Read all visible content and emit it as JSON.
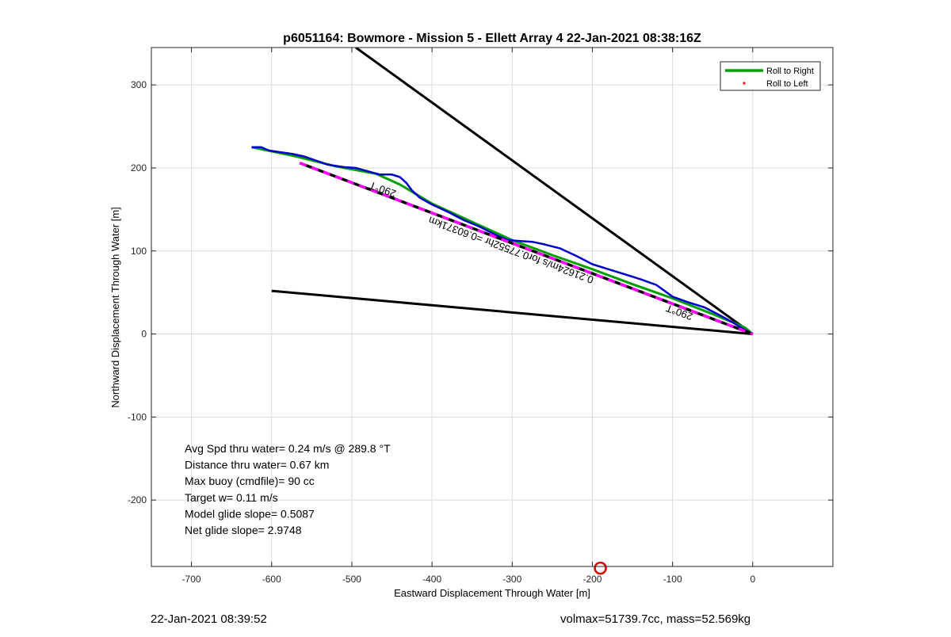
{
  "footer": {
    "timestamp": "22-Jan-2021 08:39:52",
    "vehicle_info": "volmax=51739.7cc, mass=52.569kg"
  },
  "chart_data": {
    "type": "line",
    "title": "p6051164: Bowmore - Mission 5 - Ellett Array 4 22-Jan-2021 08:38:16Z",
    "xlabel": "Eastward Displacement Through Water [m]",
    "ylabel": "Northward Displacement Through Water [m]",
    "xlim": [
      -750,
      100
    ],
    "ylim": [
      -280,
      345
    ],
    "xticks": [
      -700,
      -600,
      -500,
      -400,
      -300,
      -200,
      -100,
      0
    ],
    "yticks": [
      -200,
      -100,
      0,
      100,
      200,
      300
    ],
    "grid": true,
    "legend": {
      "placement": "top-right",
      "entries": [
        {
          "label": "Roll to Right",
          "color": "#00a000",
          "style": "line"
        },
        {
          "label": "Roll to Left",
          "color": "#ff0000",
          "style": "dot"
        }
      ]
    },
    "series": [
      {
        "id": "wedge-upper",
        "color": "#000000",
        "points": [
          [
            0,
            0
          ],
          [
            -495,
            345
          ]
        ]
      },
      {
        "id": "wedge-lower",
        "color": "#000000",
        "points": [
          [
            0,
            0
          ],
          [
            -600,
            52
          ]
        ]
      },
      {
        "id": "roll-right-track",
        "color": "#00a000",
        "points": [
          [
            -625,
            225
          ],
          [
            -610,
            222
          ],
          [
            -570,
            214
          ],
          [
            -520,
            202
          ],
          [
            -470,
            193
          ],
          [
            -440,
            180
          ],
          [
            -400,
            157
          ],
          [
            -350,
            135
          ],
          [
            -300,
            113
          ],
          [
            -250,
            95
          ],
          [
            -200,
            78
          ],
          [
            -150,
            60
          ],
          [
            -100,
            43
          ],
          [
            -50,
            24
          ],
          [
            -10,
            8
          ],
          [
            0,
            0
          ]
        ]
      },
      {
        "id": "glider-track",
        "color": "#0000cc",
        "points": [
          [
            -625,
            225
          ],
          [
            -613,
            225
          ],
          [
            -603,
            221
          ],
          [
            -590,
            219
          ],
          [
            -575,
            217
          ],
          [
            -560,
            214
          ],
          [
            -545,
            209
          ],
          [
            -530,
            204
          ],
          [
            -510,
            201
          ],
          [
            -495,
            200
          ],
          [
            -480,
            196
          ],
          [
            -465,
            192
          ],
          [
            -450,
            192
          ],
          [
            -440,
            189
          ],
          [
            -432,
            182
          ],
          [
            -425,
            173
          ],
          [
            -415,
            164
          ],
          [
            -400,
            156
          ],
          [
            -380,
            147
          ],
          [
            -360,
            137
          ],
          [
            -340,
            129
          ],
          [
            -320,
            119
          ],
          [
            -305,
            113
          ],
          [
            -290,
            112
          ],
          [
            -275,
            111
          ],
          [
            -260,
            108
          ],
          [
            -240,
            103
          ],
          [
            -220,
            94
          ],
          [
            -200,
            84
          ],
          [
            -180,
            78
          ],
          [
            -160,
            72
          ],
          [
            -140,
            66
          ],
          [
            -120,
            59
          ],
          [
            -100,
            45
          ],
          [
            -80,
            38
          ],
          [
            -60,
            32
          ],
          [
            -40,
            22
          ],
          [
            -25,
            14
          ],
          [
            -15,
            8
          ],
          [
            -8,
            4
          ],
          [
            0,
            0
          ]
        ]
      },
      {
        "id": "mean-track",
        "color": "#ff00ff",
        "dashed_with": "#000000",
        "points": [
          [
            -565,
            206
          ],
          [
            0,
            0
          ]
        ]
      }
    ],
    "annotations": [
      {
        "text": "290°T",
        "x": -460,
        "y": 178,
        "rotation_deg": 200.3
      },
      {
        "text": "0.21624m/s for0.77552hr =0.60371km",
        "x": -300,
        "y": 105,
        "rotation_deg": 200.3
      },
      {
        "text": "290°T",
        "x": -90,
        "y": 30,
        "rotation_deg": 200.3
      }
    ],
    "stats_text": [
      "Avg Spd thru water=  0.24 m/s @ 289.8 °T",
      "Distance thru water=  0.67 km",
      "Max buoy (cmdfile)= 90 cc",
      "Target w= 0.11 m/s",
      "Model glide slope= 0.5087",
      "Net glide slope= 2.9748"
    ],
    "marker": {
      "shape": "circle",
      "color": "#dd0000",
      "x": -190,
      "y": -282
    }
  }
}
